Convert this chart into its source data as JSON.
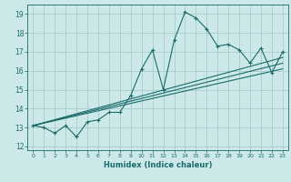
{
  "title": "",
  "xlabel": "Humidex (Indice chaleur)",
  "bg_color": "#cce8e8",
  "grid_color": "#aacccc",
  "line_color": "#1a6b6b",
  "xlim": [
    -0.5,
    23.5
  ],
  "ylim": [
    11.8,
    19.5
  ],
  "x_ticks": [
    0,
    1,
    2,
    3,
    4,
    5,
    6,
    7,
    8,
    9,
    10,
    11,
    12,
    13,
    14,
    15,
    16,
    17,
    18,
    19,
    20,
    21,
    22,
    23
  ],
  "y_ticks": [
    12,
    13,
    14,
    15,
    16,
    17,
    18,
    19
  ],
  "main_line_x": [
    0,
    1,
    2,
    3,
    4,
    5,
    6,
    7,
    8,
    9,
    10,
    11,
    12,
    13,
    14,
    15,
    16,
    17,
    18,
    19,
    20,
    21,
    22,
    23
  ],
  "main_line_y": [
    13.1,
    13.0,
    12.7,
    13.1,
    12.5,
    13.3,
    13.4,
    13.8,
    13.8,
    14.7,
    16.1,
    17.1,
    15.0,
    17.6,
    19.1,
    18.8,
    18.2,
    17.3,
    17.4,
    17.1,
    16.4,
    17.2,
    15.9,
    17.0
  ],
  "reg_line1_x": [
    0,
    23
  ],
  "reg_line1_y": [
    13.1,
    16.7
  ],
  "reg_line2_x": [
    0,
    23
  ],
  "reg_line2_y": [
    13.1,
    16.4
  ],
  "reg_line3_x": [
    0,
    23
  ],
  "reg_line3_y": [
    13.1,
    16.1
  ]
}
